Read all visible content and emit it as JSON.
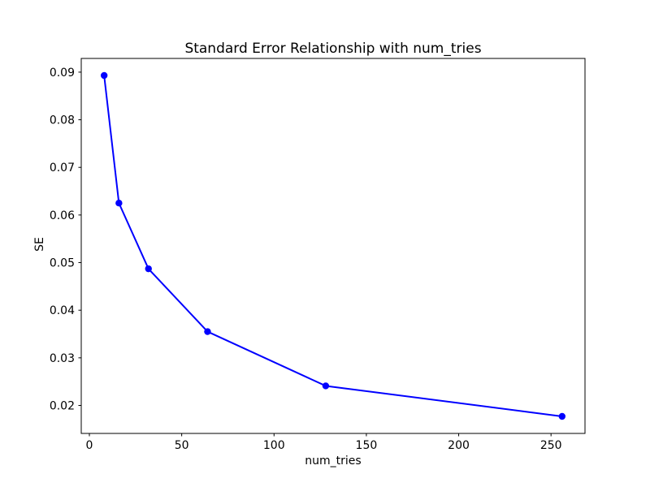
{
  "figure": {
    "background_color": "#ffffff",
    "frame_color": "#000000"
  },
  "chart_data": {
    "type": "line",
    "title": "Standard Error Relationship with num_tries",
    "xlabel": "num_tries",
    "ylabel": "SE",
    "x": [
      8,
      16,
      32,
      64,
      128,
      256
    ],
    "y": [
      0.0893,
      0.0625,
      0.0487,
      0.0355,
      0.0241,
      0.0177
    ],
    "line_color": "#0000ff",
    "marker": "circle",
    "marker_color": "#0000ff",
    "xlim": [
      -4.4,
      268.4
    ],
    "ylim": [
      0.01412,
      0.09288
    ],
    "xticks": [
      0,
      50,
      100,
      150,
      200,
      250
    ],
    "xtick_labels": [
      "0",
      "50",
      "100",
      "150",
      "200",
      "250"
    ],
    "yticks": [
      0.02,
      0.03,
      0.04,
      0.05,
      0.06,
      0.07,
      0.08,
      0.09
    ],
    "ytick_labels": [
      "0.02",
      "0.03",
      "0.04",
      "0.05",
      "0.06",
      "0.07",
      "0.08",
      "0.09"
    ],
    "grid": false,
    "legend": false
  }
}
